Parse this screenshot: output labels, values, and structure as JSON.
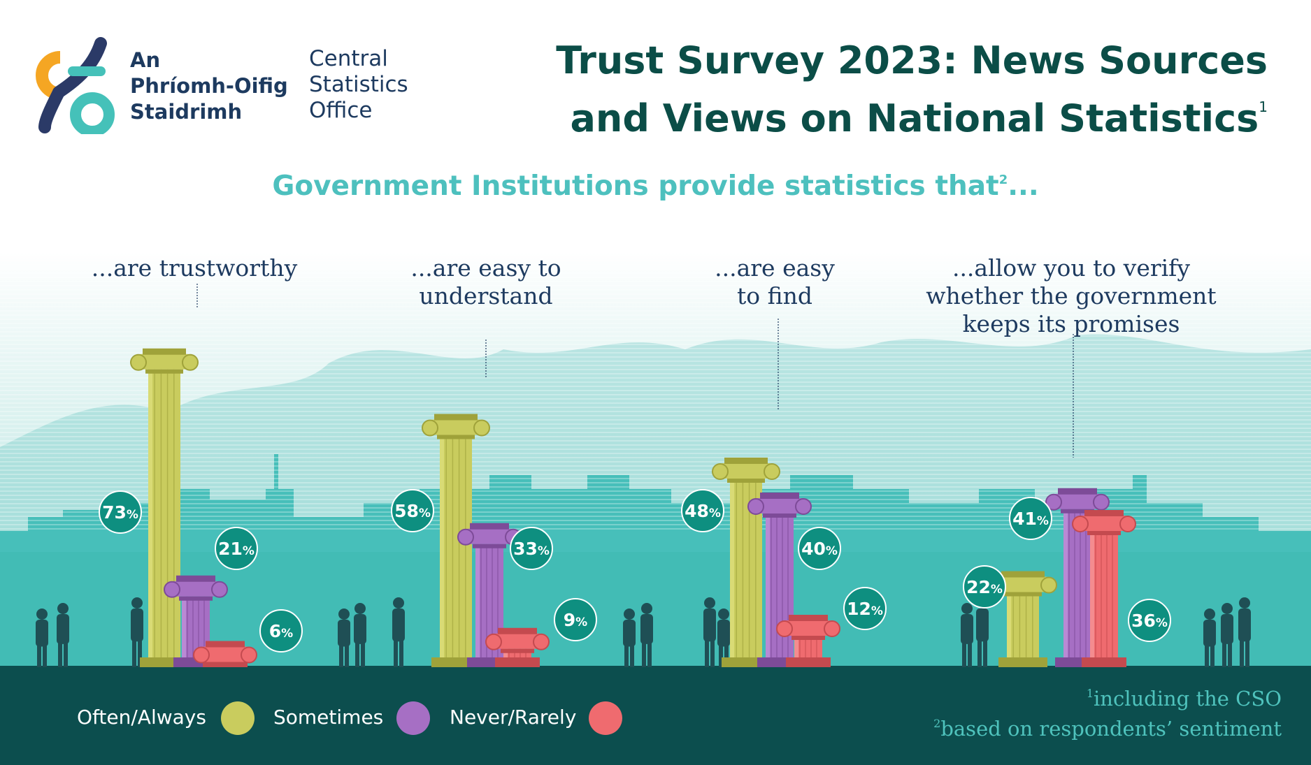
{
  "logo": {
    "irish_line1": "An",
    "irish_line2": "Phríomh-Oifig",
    "irish_line3": "Staidrimh",
    "english_line1": "Central",
    "english_line2": "Statistics",
    "english_line3": "Office"
  },
  "title": {
    "line1": "Trust Survey 2023: News Sources",
    "line2": "and Views on National Statistics",
    "footnote_mark": "1"
  },
  "subtitle": {
    "text": "Government Institutions provide statistics that",
    "footnote_mark": "2",
    "ellipsis": "..."
  },
  "colors": {
    "often": "#c9cc5e",
    "sometimes": "#a66fc4",
    "never": "#ef6b6f",
    "title": "#0b4d47",
    "subtitle": "#4dc0be",
    "badge": "#0e8f80",
    "footer": "#0c4e4e"
  },
  "chart_data": {
    "type": "bar",
    "categories": [
      "...are trustworthy",
      "...are easy to understand",
      "...are easy to find",
      "...allow you to verify whether the government keeps its promises"
    ],
    "category_label_lines": [
      [
        "...are trustworthy"
      ],
      [
        "...are easy to",
        "understand"
      ],
      [
        "...are easy",
        "to find"
      ],
      [
        "...allow you to verify",
        "whether the government",
        "keeps its promises"
      ]
    ],
    "series": [
      {
        "name": "Often/Always",
        "values": [
          73,
          58,
          48,
          22
        ]
      },
      {
        "name": "Sometimes",
        "values": [
          21,
          33,
          40,
          41
        ]
      },
      {
        "name": "Never/Rarely",
        "values": [
          6,
          9,
          12,
          36
        ]
      }
    ],
    "unit": "%",
    "ylim": [
      0,
      100
    ],
    "bar_style": "ionic columns",
    "grid": false
  },
  "legend": {
    "items": [
      {
        "label": "Often/Always",
        "color": "#c9cc5e"
      },
      {
        "label": "Sometimes",
        "color": "#a66fc4"
      },
      {
        "label": "Never/Rarely",
        "color": "#ef6b6f"
      }
    ]
  },
  "footnotes": [
    {
      "mark": "1",
      "text": "including the CSO"
    },
    {
      "mark": "2",
      "text": "based on respondents’ sentiment"
    }
  ]
}
